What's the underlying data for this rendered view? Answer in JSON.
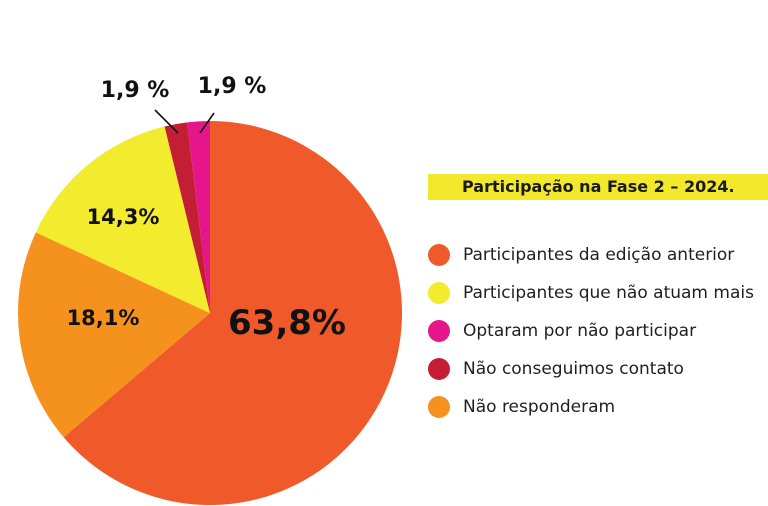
{
  "chart_data": {
    "type": "pie",
    "title": "Participação na Fase 2 – 2024.",
    "slices": [
      {
        "name": "Participantes da edição anterior",
        "value": 63.8,
        "label": "63,8%",
        "color": "#f05a2a"
      },
      {
        "name": "Não responderam",
        "value": 18.1,
        "label": "18,1%",
        "color": "#f5921e"
      },
      {
        "name": "Participantes que não atuam mais",
        "value": 14.3,
        "label": "14,3%",
        "color": "#f3eb2e"
      },
      {
        "name": "Não conseguimos contato",
        "value": 1.9,
        "label": "1,9 %",
        "color": "#c41e34"
      },
      {
        "name": "Optaram por não participar",
        "value": 1.9,
        "label": "1,9 %",
        "color": "#e7158a"
      }
    ],
    "legend": [
      {
        "label": "Participantes da edição anterior",
        "color": "#f05a2a"
      },
      {
        "label": "Participantes que não atuam mais",
        "color": "#f3eb2e"
      },
      {
        "label": "Optaram por não participar",
        "color": "#e7158a"
      },
      {
        "label": "Não conseguimos contato",
        "color": "#c41e34"
      },
      {
        "label": "Não responderam",
        "color": "#f5921e"
      }
    ],
    "legend_placement": "right"
  }
}
